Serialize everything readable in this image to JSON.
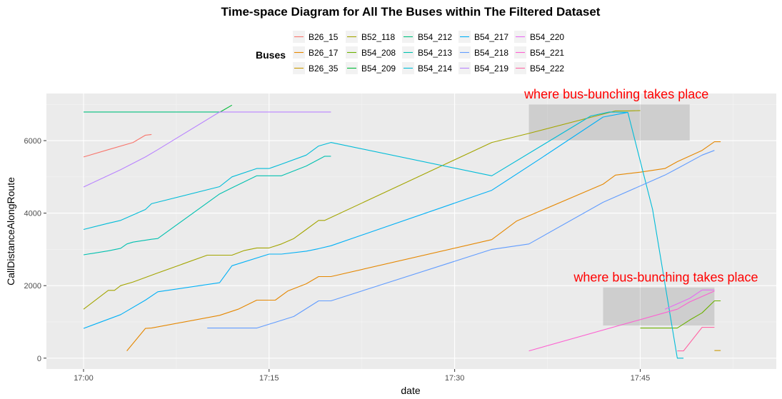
{
  "chart_data": {
    "type": "line",
    "title": "Time-space Diagram for All The Buses within The Filtered Dataset",
    "xlabel": "date",
    "ylabel": "CallDistanceAlongRoute",
    "x_unit": "time of day (hh:mm)",
    "xlim": [
      "16:57",
      "17:56"
    ],
    "ylim": [
      -300,
      7300
    ],
    "x_ticks": [
      "17:00",
      "17:15",
      "17:30",
      "17:45"
    ],
    "y_ticks": [
      0,
      2000,
      4000,
      6000
    ],
    "grid": true,
    "legend": {
      "title": "Buses",
      "position": "top"
    },
    "series": [
      {
        "name": "B26_15",
        "color": "#F8766D",
        "x": [
          "17:00",
          "17:02",
          "17:04",
          "17:05",
          "17:05:30"
        ],
        "y": [
          5550,
          5750,
          5950,
          6150,
          6170
        ]
      },
      {
        "name": "B26_17",
        "color": "#E58700",
        "x": [
          "17:03:30",
          "17:05",
          "17:05:30",
          "17:11",
          "17:12:30",
          "17:14",
          "17:15:30",
          "17:16:30",
          "17:18",
          "17:19",
          "17:20",
          "17:33",
          "17:35",
          "17:42",
          "17:43",
          "17:45",
          "17:47",
          "17:48",
          "17:50",
          "17:51",
          "17:51:30"
        ],
        "y": [
          200,
          820,
          830,
          1180,
          1350,
          1600,
          1600,
          1850,
          2050,
          2250,
          2250,
          3270,
          3780,
          4800,
          5050,
          5130,
          5230,
          5420,
          5730,
          5970,
          5970
        ]
      },
      {
        "name": "B26_35",
        "color": "#C99800",
        "x": [
          "17:51",
          "17:51:30"
        ],
        "y": [
          210,
          210
        ]
      },
      {
        "name": "B52_118",
        "color": "#A3A500",
        "x": [
          "17:00",
          "17:02",
          "17:02:30",
          "17:03",
          "17:04",
          "17:06",
          "17:10",
          "17:12",
          "17:13",
          "17:14",
          "17:15",
          "17:16",
          "17:17",
          "17:18",
          "17:19",
          "17:19:30",
          "17:33",
          "17:36",
          "17:43",
          "17:44",
          "17:45"
        ],
        "y": [
          1350,
          1870,
          1870,
          2000,
          2100,
          2350,
          2840,
          2840,
          2970,
          3040,
          3040,
          3150,
          3300,
          3550,
          3800,
          3800,
          5950,
          6200,
          6820,
          6820,
          6830
        ]
      },
      {
        "name": "B54_208",
        "color": "#6BB100",
        "x": [
          "17:45",
          "17:48",
          "17:49",
          "17:50",
          "17:51",
          "17:51:30"
        ],
        "y": [
          830,
          830,
          1050,
          1250,
          1580,
          1580
        ]
      },
      {
        "name": "B54_209",
        "color": "#00BA38",
        "x": [
          "17:11",
          "17:12"
        ],
        "y": [
          6780,
          6980
        ]
      },
      {
        "name": "B54_212",
        "color": "#00BF7D",
        "x": [
          "17:00",
          "17:11"
        ],
        "y": [
          6790,
          6790
        ]
      },
      {
        "name": "B54_213",
        "color": "#00C0AF",
        "x": [
          "17:00",
          "17:02",
          "17:03",
          "17:03:30",
          "17:04",
          "17:05:30",
          "17:06",
          "17:11",
          "17:12",
          "17:14",
          "17:15",
          "17:16",
          "17:18",
          "17:19:30",
          "17:20"
        ],
        "y": [
          2850,
          2960,
          3030,
          3150,
          3200,
          3280,
          3300,
          4530,
          4700,
          5030,
          5030,
          5030,
          5300,
          5570,
          5570
        ]
      },
      {
        "name": "B54_214",
        "color": "#00BCD8",
        "x": [
          "17:00",
          "17:02",
          "17:03",
          "17:05",
          "17:05:30",
          "17:11",
          "17:12",
          "17:14",
          "17:15",
          "17:16",
          "17:18",
          "17:19",
          "17:20",
          "17:33",
          "17:41",
          "17:42:30",
          "17:44",
          "17:46",
          "17:48",
          "17:48:30"
        ],
        "y": [
          3550,
          3720,
          3800,
          4100,
          4260,
          4730,
          5000,
          5230,
          5230,
          5350,
          5600,
          5850,
          5950,
          5030,
          6680,
          6790,
          6780,
          4100,
          0,
          0
        ]
      },
      {
        "name": "B54_217",
        "color": "#00B0F6",
        "x": [
          "17:00",
          "17:03",
          "17:05",
          "17:06",
          "17:11",
          "17:12",
          "17:15",
          "17:16",
          "17:18",
          "17:19",
          "17:20",
          "17:33",
          "17:37",
          "17:42",
          "17:44"
        ],
        "y": [
          820,
          1200,
          1600,
          1830,
          2080,
          2550,
          2870,
          2870,
          2950,
          3020,
          3100,
          4630,
          5520,
          6650,
          6780
        ]
      },
      {
        "name": "B54_218",
        "color": "#619CFF",
        "x": [
          "17:10",
          "17:14",
          "17:17",
          "17:19",
          "17:20",
          "17:33",
          "17:36",
          "17:42",
          "17:47",
          "17:48",
          "17:50",
          "17:51"
        ],
        "y": [
          830,
          830,
          1150,
          1580,
          1580,
          3000,
          3150,
          4300,
          5050,
          5230,
          5600,
          5730
        ]
      },
      {
        "name": "B54_219",
        "color": "#B983FF",
        "x": [
          "17:00",
          "17:03",
          "17:05",
          "17:06",
          "17:11",
          "17:20"
        ],
        "y": [
          4720,
          5200,
          5550,
          5750,
          6790,
          6790
        ]
      },
      {
        "name": "B54_220",
        "color": "#E76BF3",
        "x": [
          "17:47",
          "17:49",
          "17:50",
          "17:51"
        ],
        "y": [
          1350,
          1650,
          1880,
          1880
        ]
      },
      {
        "name": "B54_221",
        "color": "#FD61D1",
        "x": [
          "17:36",
          "17:48",
          "17:49",
          "17:51"
        ],
        "y": [
          200,
          1350,
          1550,
          1850
        ]
      },
      {
        "name": "B54_222",
        "color": "#FF67A4",
        "x": [
          "17:48",
          "17:48:30",
          "17:50",
          "17:51"
        ],
        "y": [
          200,
          200,
          850,
          850
        ]
      }
    ],
    "annotations": [
      {
        "text": "where bus-bunching takes place",
        "color": "#ff0000",
        "box": {
          "x": [
            "17:36",
            "17:49"
          ],
          "y": [
            6000,
            7000
          ]
        }
      },
      {
        "text": "where bus-bunching takes place",
        "color": "#ff0000",
        "box": {
          "x": [
            "17:42",
            "17:51"
          ],
          "y": [
            900,
            1950
          ]
        }
      }
    ]
  }
}
